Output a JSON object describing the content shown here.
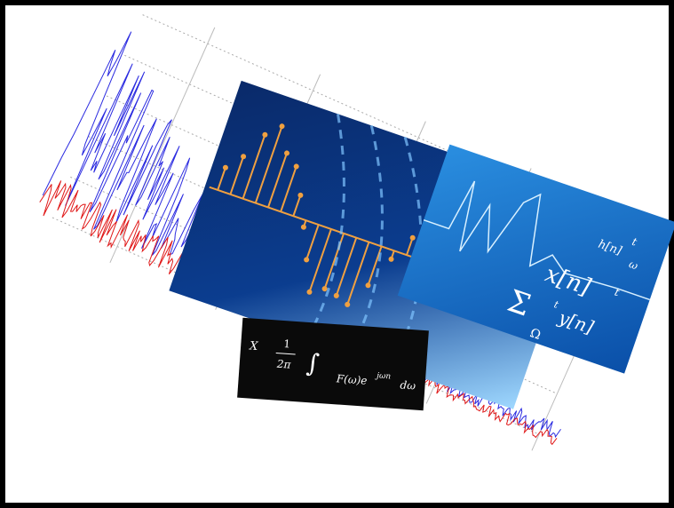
{
  "collage": {
    "symbols": [
      "x[n]",
      "h[n]",
      "y[n]",
      "Σ",
      "Ω",
      "t",
      "ω",
      "t",
      "t"
    ],
    "formula": [
      "X",
      "1",
      "2π",
      "F(ω)e",
      "jωn",
      "dω"
    ]
  }
}
